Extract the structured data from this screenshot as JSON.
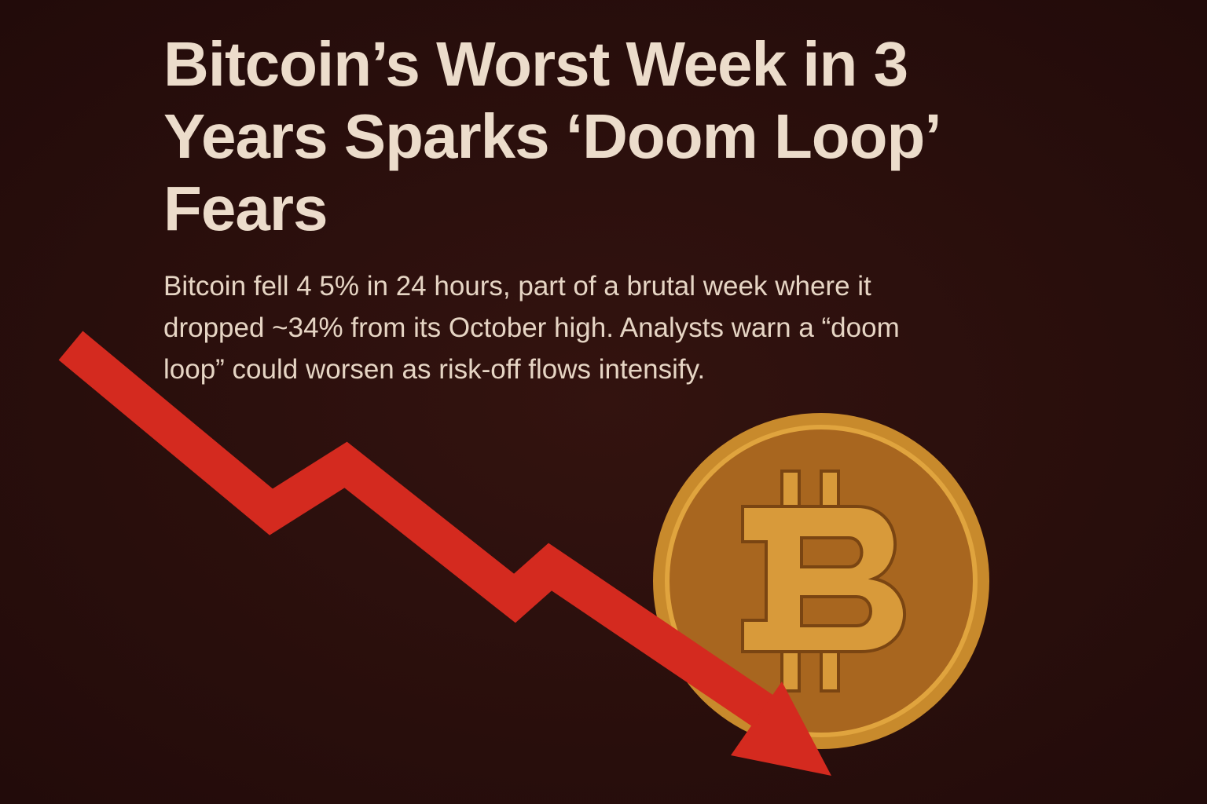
{
  "header": {
    "title": "Bitcoin’s Worst Week in 3 Years Sparks ‘Doom Loop’ Fears",
    "body": "Bitcoin fell 4 5% in 24 hours, part of a brutal week where it dropped ~34% from its October high. Analysts warn a “doom loop” could worsen as risk-off flows intensify."
  }
}
